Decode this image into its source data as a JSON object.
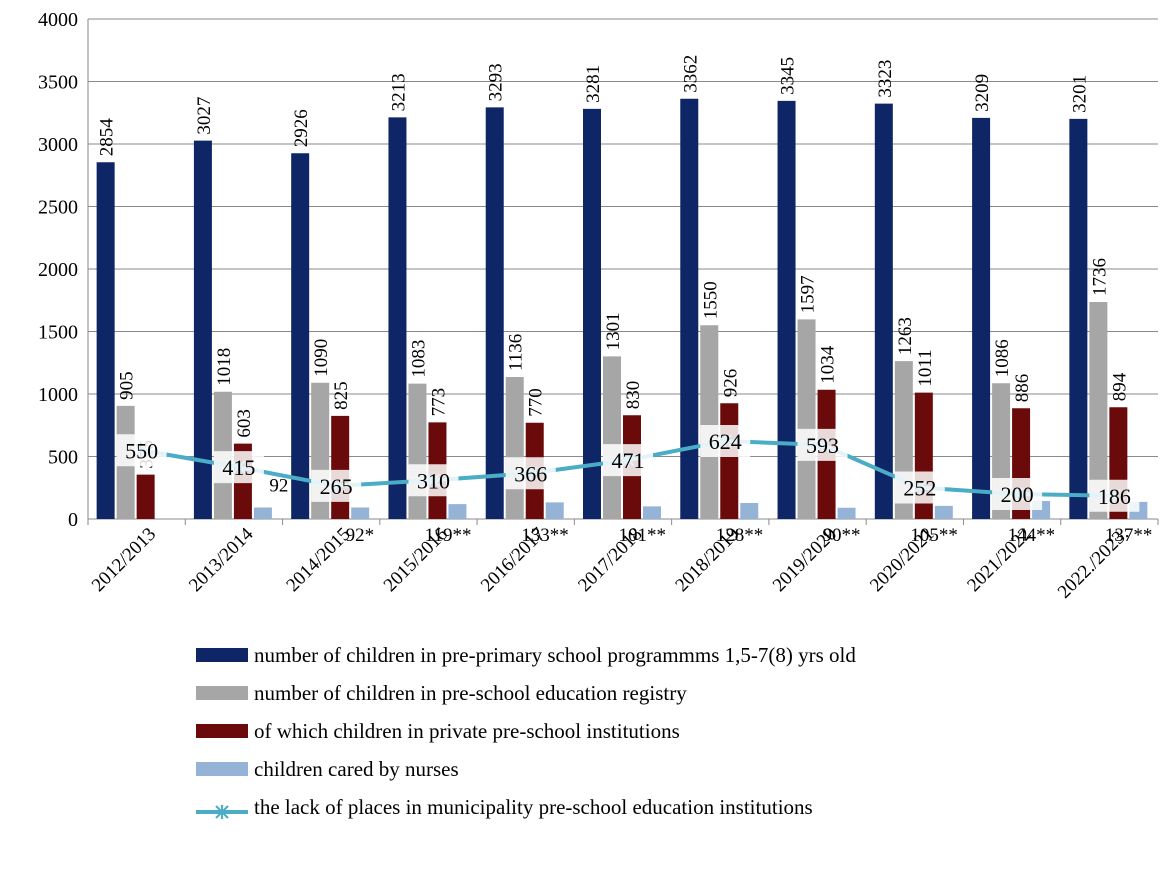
{
  "chart_data": {
    "type": "bar",
    "categories": [
      "2012/2013",
      "2013/2014",
      "2014/2015",
      "2015/2016",
      "2016/2017",
      "2017/2018",
      "2018/2019",
      "2019/2020",
      "2020/2021",
      "2021/2022",
      "2022./2023."
    ],
    "ylim": [
      0,
      4000
    ],
    "yticks": [
      0,
      500,
      1000,
      1500,
      2000,
      2500,
      3000,
      3500,
      4000
    ],
    "grid": "horizontal",
    "legend_position": "bottom",
    "series": [
      {
        "name": "number of children in pre-primary school programmes 1,5-7(8) yrs old",
        "type": "bar",
        "color": "#0e2566",
        "values": [
          2854,
          3027,
          2926,
          3213,
          3293,
          3281,
          3362,
          3345,
          3323,
          3209,
          3201
        ]
      },
      {
        "name": "number of children in pre-school education registry",
        "type": "bar",
        "color": "#a6a6a6",
        "values": [
          905,
          1018,
          1090,
          1083,
          1136,
          1301,
          1550,
          1597,
          1263,
          1086,
          1736
        ]
      },
      {
        "name": "of which children in private pre-school institutions",
        "type": "bar",
        "color": "#6b0a0a",
        "values": [
          355,
          603,
          825,
          773,
          770,
          830,
          926,
          1034,
          1011,
          886,
          894
        ],
        "labels": [
          "355",
          "603",
          "825",
          "773",
          "770",
          "830",
          "926",
          "1034",
          "1011",
          "886",
          "894"
        ]
      },
      {
        "name": "children cared by nurses",
        "type": "bar",
        "color": "#95b3d7",
        "values": [
          null,
          92,
          92,
          119,
          133,
          101,
          128,
          90,
          105,
          144,
          137
        ],
        "labels": [
          "",
          "92",
          "92*",
          "119**",
          "133**",
          "101**",
          "128**",
          "90**",
          "105**",
          "144**",
          "137**"
        ]
      },
      {
        "name": "the lack of places in municipality pre-school education institutions",
        "type": "line",
        "color": "#4bacc6",
        "values": [
          550,
          415,
          265,
          310,
          366,
          471,
          624,
          593,
          252,
          200,
          186
        ]
      }
    ]
  },
  "legend": {
    "items": [
      {
        "label": "number of children in pre-primary school programmms 1,5-7(8) yrs old",
        "color": "#0e2566",
        "kind": "bar"
      },
      {
        "label": "number of children in pre-school education registry",
        "color": "#a6a6a6",
        "kind": "bar"
      },
      {
        "label": "of which children in private pre-school institutions",
        "color": "#6b0a0a",
        "kind": "bar"
      },
      {
        "label": "children cared by nurses",
        "color": "#95b3d7",
        "kind": "bar"
      },
      {
        "label": "the lack of places in municipality pre-school education institutions",
        "color": "#4bacc6",
        "kind": "line"
      }
    ]
  }
}
